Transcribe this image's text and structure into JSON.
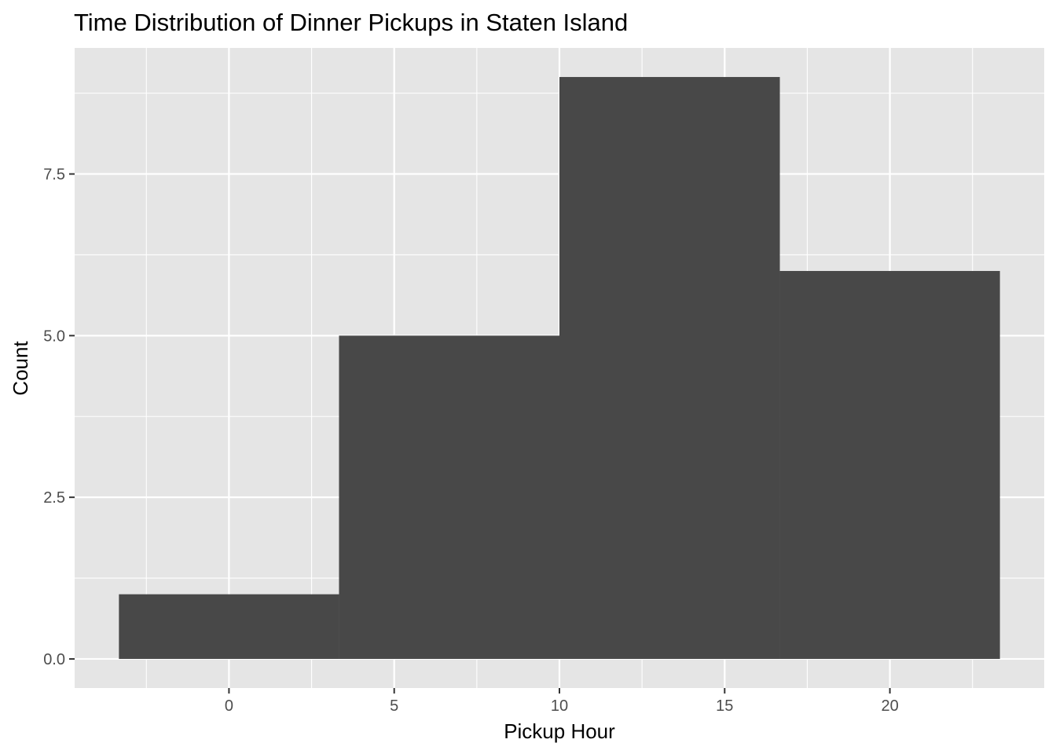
{
  "chart_data": {
    "type": "bar",
    "title": "Time Distribution of Dinner Pickups in Staten Island",
    "xlabel": "Pickup Hour",
    "ylabel": "Count",
    "bins": [
      {
        "x_start": -3.33,
        "x_end": 3.33,
        "count": 1
      },
      {
        "x_start": 3.33,
        "x_end": 10.0,
        "count": 5
      },
      {
        "x_start": 10.0,
        "x_end": 16.67,
        "count": 9
      },
      {
        "x_start": 16.67,
        "x_end": 23.33,
        "count": 6
      }
    ],
    "xlim": [
      -4.67,
      24.67
    ],
    "ylim": [
      -0.45,
      9.45
    ],
    "x_ticks": [
      0,
      5,
      10,
      15,
      20
    ],
    "x_tick_labels": [
      "0",
      "5",
      "10",
      "15",
      "20"
    ],
    "y_ticks": [
      0,
      2.5,
      5,
      7.5
    ],
    "y_tick_labels": [
      "0.0",
      "2.5",
      "5.0",
      "7.5"
    ],
    "grid": true,
    "colors": {
      "panel_background": "#e5e5e5",
      "grid_line": "#ffffff",
      "bar_fill": "#484848",
      "tick_text": "#4d4d4d",
      "tick_mark": "#333333"
    }
  }
}
